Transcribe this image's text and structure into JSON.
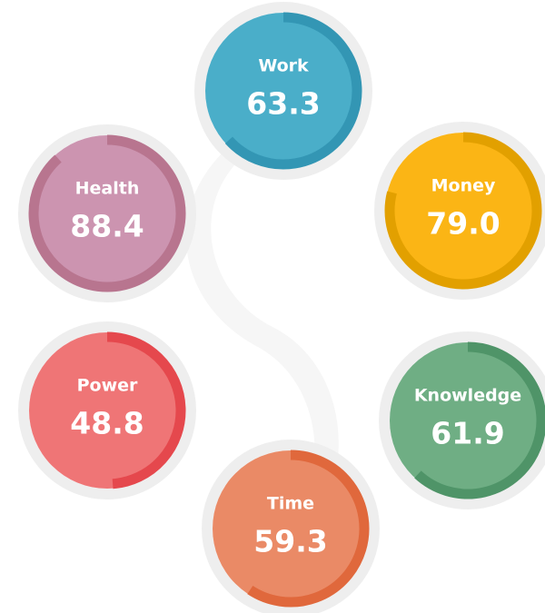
{
  "chart_data": {
    "type": "radial",
    "categories": [
      "Work",
      "Money",
      "Knowledge",
      "Time",
      "Power",
      "Health"
    ],
    "values": [
      63.3,
      79.0,
      61.9,
      59.3,
      48.8,
      88.4
    ],
    "value_labels": [
      "63.3",
      "79.0",
      "61.9",
      "59.3",
      "48.8",
      "88.4"
    ],
    "colors": [
      "#4aaec9",
      "#fbb515",
      "#6fae84",
      "#ea8a66",
      "#ef7576",
      "#cc94b0"
    ],
    "arc_colors": [
      "#3396b4",
      "#e2a000",
      "#4f9468",
      "#e0683c",
      "#e5484d",
      "#b8758f"
    ],
    "ylim": [
      0,
      100
    ]
  }
}
